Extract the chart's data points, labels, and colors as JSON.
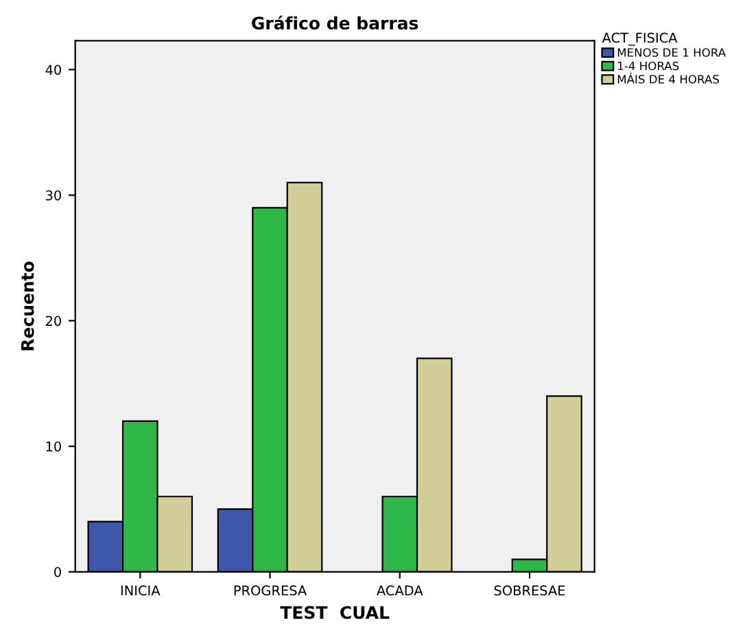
{
  "chart_data": {
    "type": "bar",
    "title": "Gráfico de barras",
    "xlabel": "TEST  CUAL",
    "ylabel": "Recuento",
    "legend_title": "ACT_FISICA",
    "categories": [
      "INICIA",
      "PROGRESA",
      "ACADA",
      "SOBRESAE"
    ],
    "series": [
      {
        "name": "MENOS DE 1 HORA",
        "color": "#3e58ac",
        "values": [
          4,
          5,
          null,
          null
        ]
      },
      {
        "name": "1-4 HORAS",
        "color": "#2eb848",
        "values": [
          12,
          29,
          6,
          1
        ]
      },
      {
        "name": "MÁIS DE 4 HORAS",
        "color": "#d3ce97",
        "values": [
          6,
          31,
          17,
          14
        ]
      }
    ],
    "ylim": [
      0,
      42.3
    ],
    "yticks": [
      0,
      10,
      20,
      30,
      40
    ],
    "grid": false,
    "legend": "top right"
  }
}
